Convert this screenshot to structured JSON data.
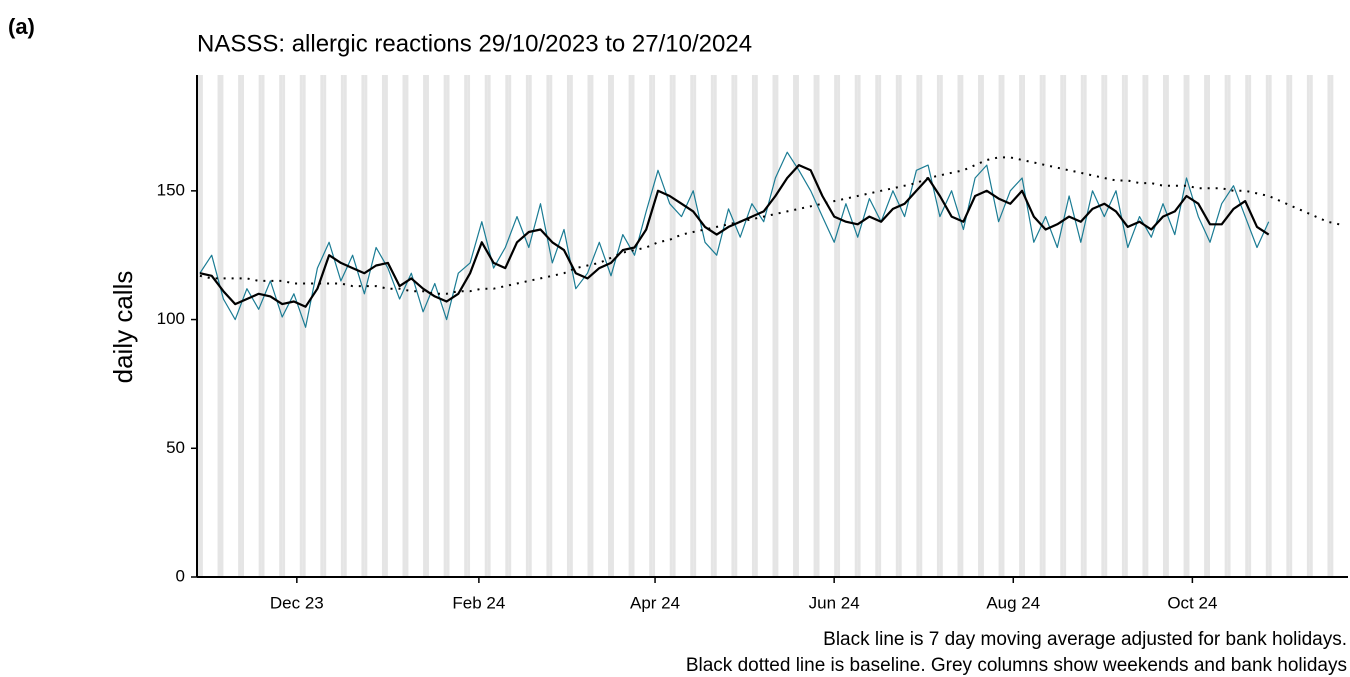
{
  "panel_label": "(a)",
  "chart_data": {
    "type": "line",
    "title": "NASSS: allergic reactions 29/10/2023 to 27/10/2024",
    "y_label": "daily calls",
    "notes": [
      "Black line is 7 day moving average adjusted for bank holidays.",
      "Black dotted line is baseline. Grey columns show weekends and bank holidays"
    ],
    "weekend_shading": true,
    "xlim": [
      "2023-10-28",
      "2024-11-23"
    ],
    "xticks": [
      {
        "value": "2023-12-01",
        "label": "Dec 23"
      },
      {
        "value": "2024-02-01",
        "label": "Feb 24"
      },
      {
        "value": "2024-04-01",
        "label": "Apr 24"
      },
      {
        "value": "2024-06-01",
        "label": "Jun 24"
      },
      {
        "value": "2024-08-01",
        "label": "Aug 24"
      },
      {
        "value": "2024-10-01",
        "label": "Oct 24"
      }
    ],
    "ylim": [
      0,
      195
    ],
    "yticks": [
      0,
      50,
      100,
      150
    ],
    "x": [
      "2023-10-29",
      "2023-11-02",
      "2023-11-06",
      "2023-11-10",
      "2023-11-14",
      "2023-11-18",
      "2023-11-22",
      "2023-11-26",
      "2023-11-30",
      "2023-12-04",
      "2023-12-08",
      "2023-12-12",
      "2023-12-16",
      "2023-12-20",
      "2023-12-24",
      "2023-12-28",
      "2024-01-01",
      "2024-01-05",
      "2024-01-09",
      "2024-01-13",
      "2024-01-17",
      "2024-01-21",
      "2024-01-25",
      "2024-01-29",
      "2024-02-02",
      "2024-02-06",
      "2024-02-10",
      "2024-02-14",
      "2024-02-18",
      "2024-02-22",
      "2024-02-26",
      "2024-03-01",
      "2024-03-05",
      "2024-03-09",
      "2024-03-13",
      "2024-03-17",
      "2024-03-21",
      "2024-03-25",
      "2024-03-29",
      "2024-04-02",
      "2024-04-06",
      "2024-04-10",
      "2024-04-14",
      "2024-04-18",
      "2024-04-22",
      "2024-04-26",
      "2024-04-30",
      "2024-05-04",
      "2024-05-08",
      "2024-05-12",
      "2024-05-16",
      "2024-05-20",
      "2024-05-24",
      "2024-05-28",
      "2024-06-01",
      "2024-06-05",
      "2024-06-09",
      "2024-06-13",
      "2024-06-17",
      "2024-06-21",
      "2024-06-25",
      "2024-06-29",
      "2024-07-03",
      "2024-07-07",
      "2024-07-11",
      "2024-07-15",
      "2024-07-19",
      "2024-07-23",
      "2024-07-27",
      "2024-07-31",
      "2024-08-04",
      "2024-08-08",
      "2024-08-12",
      "2024-08-16",
      "2024-08-20",
      "2024-08-24",
      "2024-08-28",
      "2024-09-01",
      "2024-09-05",
      "2024-09-09",
      "2024-09-13",
      "2024-09-17",
      "2024-09-21",
      "2024-09-25",
      "2024-09-29",
      "2024-10-03",
      "2024-10-07",
      "2024-10-11",
      "2024-10-15",
      "2024-10-19",
      "2024-10-23",
      "2024-10-27",
      "2024-10-31",
      "2024-11-04",
      "2024-11-08",
      "2024-11-12",
      "2024-11-16",
      "2024-11-20"
    ],
    "series": [
      {
        "name": "daily calls",
        "color": "#1b7c94",
        "width": 1.2,
        "dash": "none",
        "values": [
          118,
          125,
          108,
          100,
          112,
          104,
          115,
          101,
          110,
          97,
          120,
          130,
          115,
          125,
          110,
          128,
          120,
          108,
          118,
          103,
          114,
          100,
          118,
          122,
          138,
          120,
          128,
          140,
          128,
          145,
          122,
          135,
          112,
          118,
          130,
          117,
          133,
          125,
          142,
          158,
          145,
          140,
          150,
          130,
          125,
          143,
          132,
          145,
          138,
          155,
          165,
          158,
          150,
          140,
          130,
          145,
          132,
          147,
          138,
          150,
          140,
          158,
          160,
          140,
          150,
          135,
          155,
          160,
          138,
          150,
          155,
          130,
          140,
          128,
          148,
          130,
          150,
          140,
          150,
          128,
          140,
          132,
          145,
          133,
          155,
          140,
          130,
          145,
          152,
          140,
          128,
          138,
          null,
          null,
          null,
          null,
          null,
          null
        ]
      },
      {
        "name": "7 day moving average",
        "color": "#000000",
        "width": 2.2,
        "dash": "none",
        "values": [
          118,
          117,
          111,
          106,
          108,
          110,
          109,
          106,
          107,
          105,
          112,
          125,
          122,
          120,
          118,
          121,
          122,
          113,
          116,
          112,
          109,
          107,
          110,
          118,
          130,
          122,
          120,
          130,
          134,
          135,
          130,
          127,
          118,
          116,
          120,
          122,
          127,
          128,
          135,
          150,
          148,
          145,
          142,
          136,
          133,
          136,
          138,
          140,
          142,
          148,
          155,
          160,
          158,
          148,
          140,
          138,
          137,
          140,
          138,
          143,
          145,
          150,
          155,
          148,
          140,
          138,
          148,
          150,
          147,
          145,
          150,
          140,
          135,
          137,
          140,
          138,
          143,
          145,
          142,
          136,
          138,
          135,
          140,
          142,
          148,
          145,
          137,
          137,
          143,
          146,
          136,
          133,
          null,
          null,
          null,
          null,
          null,
          null
        ]
      },
      {
        "name": "baseline",
        "color": "#000000",
        "width": 2,
        "dash": "2 6",
        "values": [
          117,
          116,
          116,
          116,
          116,
          115,
          115,
          115,
          114,
          114,
          114,
          114,
          114,
          113,
          113,
          113,
          112,
          112,
          111,
          111,
          110,
          110,
          111,
          111,
          112,
          112,
          113,
          114,
          115,
          116,
          117,
          118,
          120,
          121,
          122,
          124,
          126,
          127,
          128,
          130,
          131,
          133,
          134,
          135,
          136,
          137,
          138,
          139,
          140,
          141,
          142,
          143,
          144,
          145,
          146,
          147,
          148,
          149,
          150,
          151,
          152,
          153,
          155,
          156,
          157,
          158,
          160,
          162,
          163,
          163,
          162,
          161,
          160,
          159,
          158,
          157,
          156,
          155,
          154,
          154,
          153,
          153,
          152,
          152,
          152,
          151,
          151,
          151,
          150,
          150,
          149,
          148,
          146,
          144,
          142,
          140,
          138,
          137
        ]
      }
    ]
  }
}
